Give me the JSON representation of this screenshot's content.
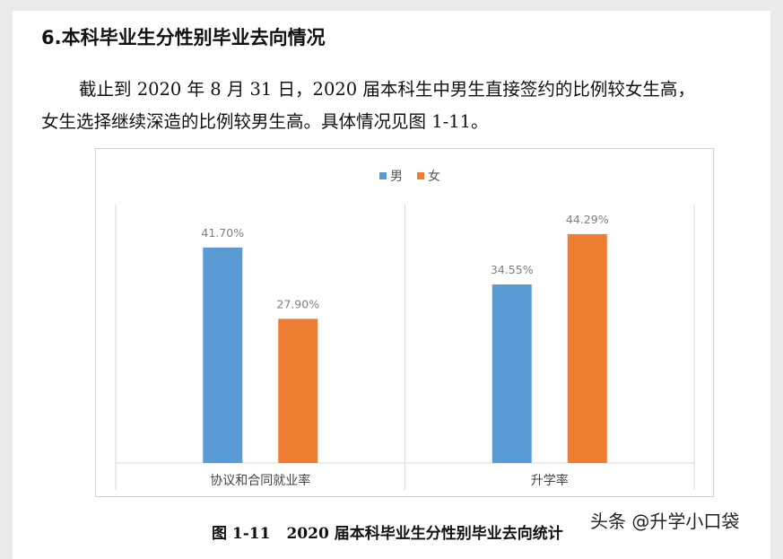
{
  "heading": "6.本科毕业生分性别毕业去向情况",
  "paragraph": {
    "line1": "截止到 2020 年 8 月 31 日，2020 届本科生中男生直接签约的比例较女生高，",
    "line2": "女生选择继续深造的比例较男生高。具体情况见图 1-11。"
  },
  "caption": {
    "number": "图 1-11",
    "text": "2020 届本科毕业生分性别毕业去向统计"
  },
  "watermark": "头条 @升学小口袋",
  "chart_data": {
    "type": "bar",
    "categories": [
      "协议和合同就业率",
      "升学率"
    ],
    "series": [
      {
        "name": "男",
        "values": [
          41.7,
          34.55
        ],
        "labels": [
          "41.70%",
          "34.55%"
        ],
        "color": "#5b9bd5"
      },
      {
        "name": "女",
        "values": [
          27.9,
          44.29
        ],
        "labels": [
          "27.90%",
          "44.29%"
        ],
        "color": "#ed7d31"
      }
    ],
    "ylim": [
      0,
      50
    ],
    "grid": false,
    "legend_position": "top"
  }
}
